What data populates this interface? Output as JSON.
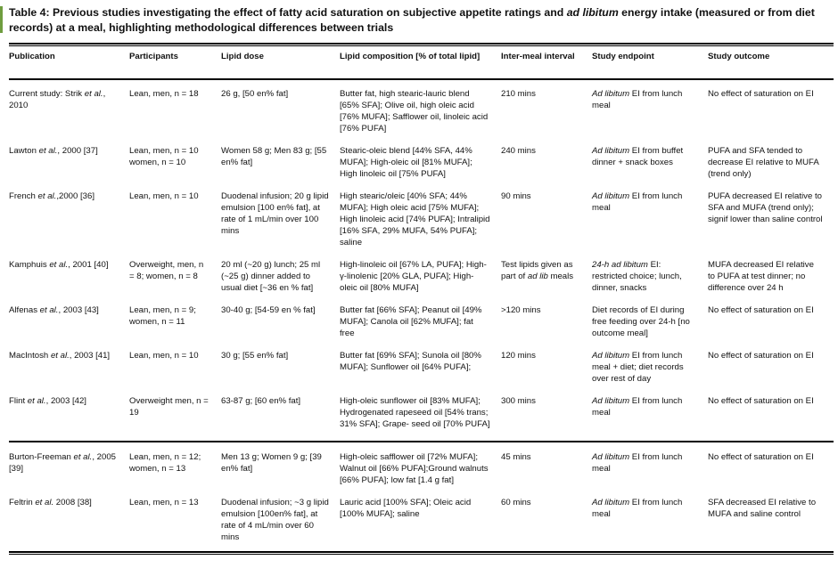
{
  "title": "Table 4: Previous studies investigating the effect of fatty acid saturation on subjective appetite ratings and *ad libitum* energy intake (measured or from diet records) at a meal, highlighting methodological differences between trials",
  "columns": [
    "Publication",
    "Participants",
    "Lipid dose",
    "Lipid composition [% of total lipid]",
    "Inter-meal interval",
    "Study endpoint",
    "Study outcome"
  ],
  "rows": [
    {
      "publication": "Current study: Strik *et al.*, 2010",
      "participants": "Lean, men, n = 18",
      "dose": "26 g, [50 en% fat]",
      "composition": "Butter fat, high stearic-lauric blend [65% SFA]; Olive oil, high oleic acid [76% MUFA]; Safflower oil, linoleic acid [76% PUFA]",
      "interval": "210 mins",
      "endpoint": "*Ad libitum* EI from lunch meal",
      "outcome": "No effect of saturation on EI",
      "divider": false
    },
    {
      "publication": "Lawton *et al.*, 2000 [37]",
      "participants": "Lean, men, n = 10 women, n = 10",
      "dose": "Women 58 g; Men 83 g; [55 en% fat]",
      "composition": "Stearic-oleic blend [44% SFA, 44% MUFA]; High-oleic oil [81% MUFA]; High linoleic oil [75% PUFA]",
      "interval": "240 mins",
      "endpoint": "*Ad libitum* EI from buffet dinner + snack boxes",
      "outcome": "PUFA and SFA tended to decrease EI relative to MUFA (trend only)",
      "divider": false
    },
    {
      "publication": "French *et al.*,2000 [36]",
      "participants": "Lean, men, n = 10",
      "dose": "Duodenal infusion; 20 g lipid emulsion [100 en% fat], at rate of 1 mL/min over 100 mins",
      "composition": "High stearic/oleic [40% SFA; 44% MUFA]; High oleic acid [75% MUFA]; High linoleic acid [74% PUFA]; Intralipid [16% SFA, 29% MUFA, 54% PUFA]; saline",
      "interval": "90 mins",
      "endpoint": "*Ad libitum* EI from lunch meal",
      "outcome": "PUFA decreased EI relative to SFA and MUFA (trend only); signif lower than saline control",
      "divider": false
    },
    {
      "publication": "Kamphuis *et al.*, 2001 [40]",
      "participants": "Overweight, men, n = 8; women, n = 8",
      "dose": "20 ml (~20 g) lunch; 25 ml (~25 g) dinner added to usual diet [~36 en % fat]",
      "composition": "High-linoleic oil [67% LA, PUFA]; High-γ-linolenic [20% GLA, PUFA]; High-oleic oil [80% MUFA]",
      "interval": "Test lipids given as part of *ad lib* meals",
      "endpoint": "*24-h ad libitum* EI: restricted choice; lunch, dinner, snacks",
      "outcome": "MUFA decreased EI relative to PUFA at test dinner; no difference over 24 h",
      "divider": false
    },
    {
      "publication": "Alfenas *et al.*, 2003 [43]",
      "participants": "Lean, men, n = 9; women, n = 11",
      "dose": "30-40 g; [54-59 en % fat]",
      "composition": "Butter fat [66% SFA]; Peanut oil [49% MUFA]; Canola oil [62% MUFA]; fat free",
      "interval": ">120 mins",
      "endpoint": "Diet records of EI during free feeding over 24-h [no outcome meal]",
      "outcome": "No effect of saturation on EI",
      "divider": false
    },
    {
      "publication": "MacIntosh *et al.*, 2003 [41]",
      "participants": "Lean, men, n = 10",
      "dose": "30 g; [55 en% fat]",
      "composition": "Butter fat [69% SFA]; Sunola oil [80% MUFA]; Sunflower oil [64% PUFA];",
      "interval": "120 mins",
      "endpoint": "*Ad libitum* EI from lunch meal + diet; diet records over rest of day",
      "outcome": "No effect of saturation on EI",
      "divider": false
    },
    {
      "publication": "Flint *et al.*, 2003 [42]",
      "participants": "Overweight men, n = 19",
      "dose": "63-87 g; [60 en% fat]",
      "composition": "High-oleic sunflower oil [83% MUFA]; Hydrogenated rapeseed oil [54% trans; 31% SFA]; Grape- seed oil [70% PUFA]",
      "interval": "300 mins",
      "endpoint": "*Ad libitum* EI from lunch meal",
      "outcome": "No effect of saturation on EI",
      "divider": false
    },
    {
      "publication": "Burton-Freeman *et al.*, 2005 [39]",
      "participants": "Lean, men, n = 12; women, n = 13",
      "dose": "Men 13 g; Women 9 g; [39 en% fat]",
      "composition": "High-oleic safflower oil [72% MUFA]; Walnut oil [66% PUFA];Ground walnuts [66% PUFA]; low fat [1.4 g fat]",
      "interval": "45 mins",
      "endpoint": "*Ad libitum* EI from lunch meal",
      "outcome": "No effect of saturation on EI",
      "divider": true
    },
    {
      "publication": "Feltrin *et al.* 2008 [38]",
      "participants": "Lean, men, n = 13",
      "dose": "Duodenal infusion; ~3 g lipid emulsion [100en% fat], at rate of 4 mL/min over 60 mins",
      "composition": "Lauric acid [100% SFA]; Oleic acid [100% MUFA]; saline",
      "interval": "60 mins",
      "endpoint": "*Ad libitum* EI from lunch meal",
      "outcome": "SFA decreased EI relative to MUFA and saline control",
      "divider": false
    }
  ],
  "accent_color": "#6f9d3f"
}
